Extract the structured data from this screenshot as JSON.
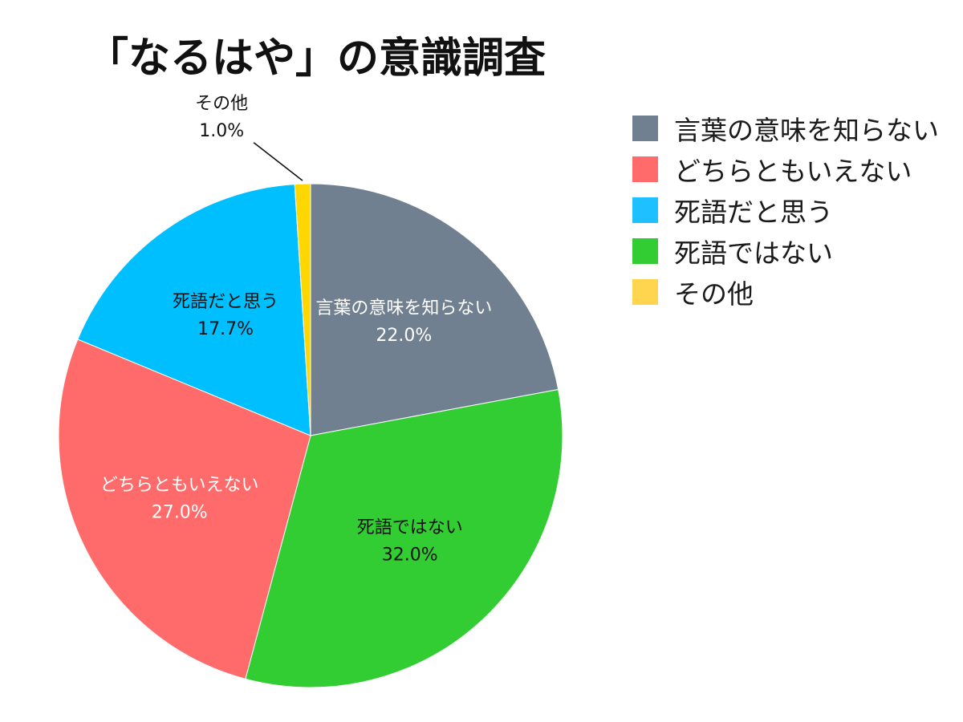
{
  "chart_data": {
    "type": "pie",
    "title": "「なるはや」の意識調査",
    "categories": [
      "言葉の意味を知らない",
      "死語ではない",
      "どちらともいえない",
      "死語だと思う",
      "その他"
    ],
    "values": [
      22.0,
      32.0,
      27.0,
      17.7,
      1.0
    ],
    "value_labels": [
      "22.0%",
      "32.0%",
      "27.0%",
      "17.7%",
      "1.0%"
    ],
    "colors": [
      "#708090",
      "#32cd32",
      "#ff6b6b",
      "#00bfff",
      "#ffd700"
    ],
    "label_colors": [
      "#ffffff",
      "#111111",
      "#ffffff",
      "#111111",
      "#111111"
    ],
    "start": "12 o'clock, clockwise",
    "legend": {
      "position": "right",
      "items": [
        {
          "label": "言葉の意味を知らない",
          "color": "#708090"
        },
        {
          "label": "どちらともいえない",
          "color": "#ff6b6b"
        },
        {
          "label": "死語だと思う",
          "color": "#1ec0ff"
        },
        {
          "label": "死語ではない",
          "color": "#32cd32"
        },
        {
          "label": "その他",
          "color": "#ffd54f"
        }
      ]
    }
  }
}
